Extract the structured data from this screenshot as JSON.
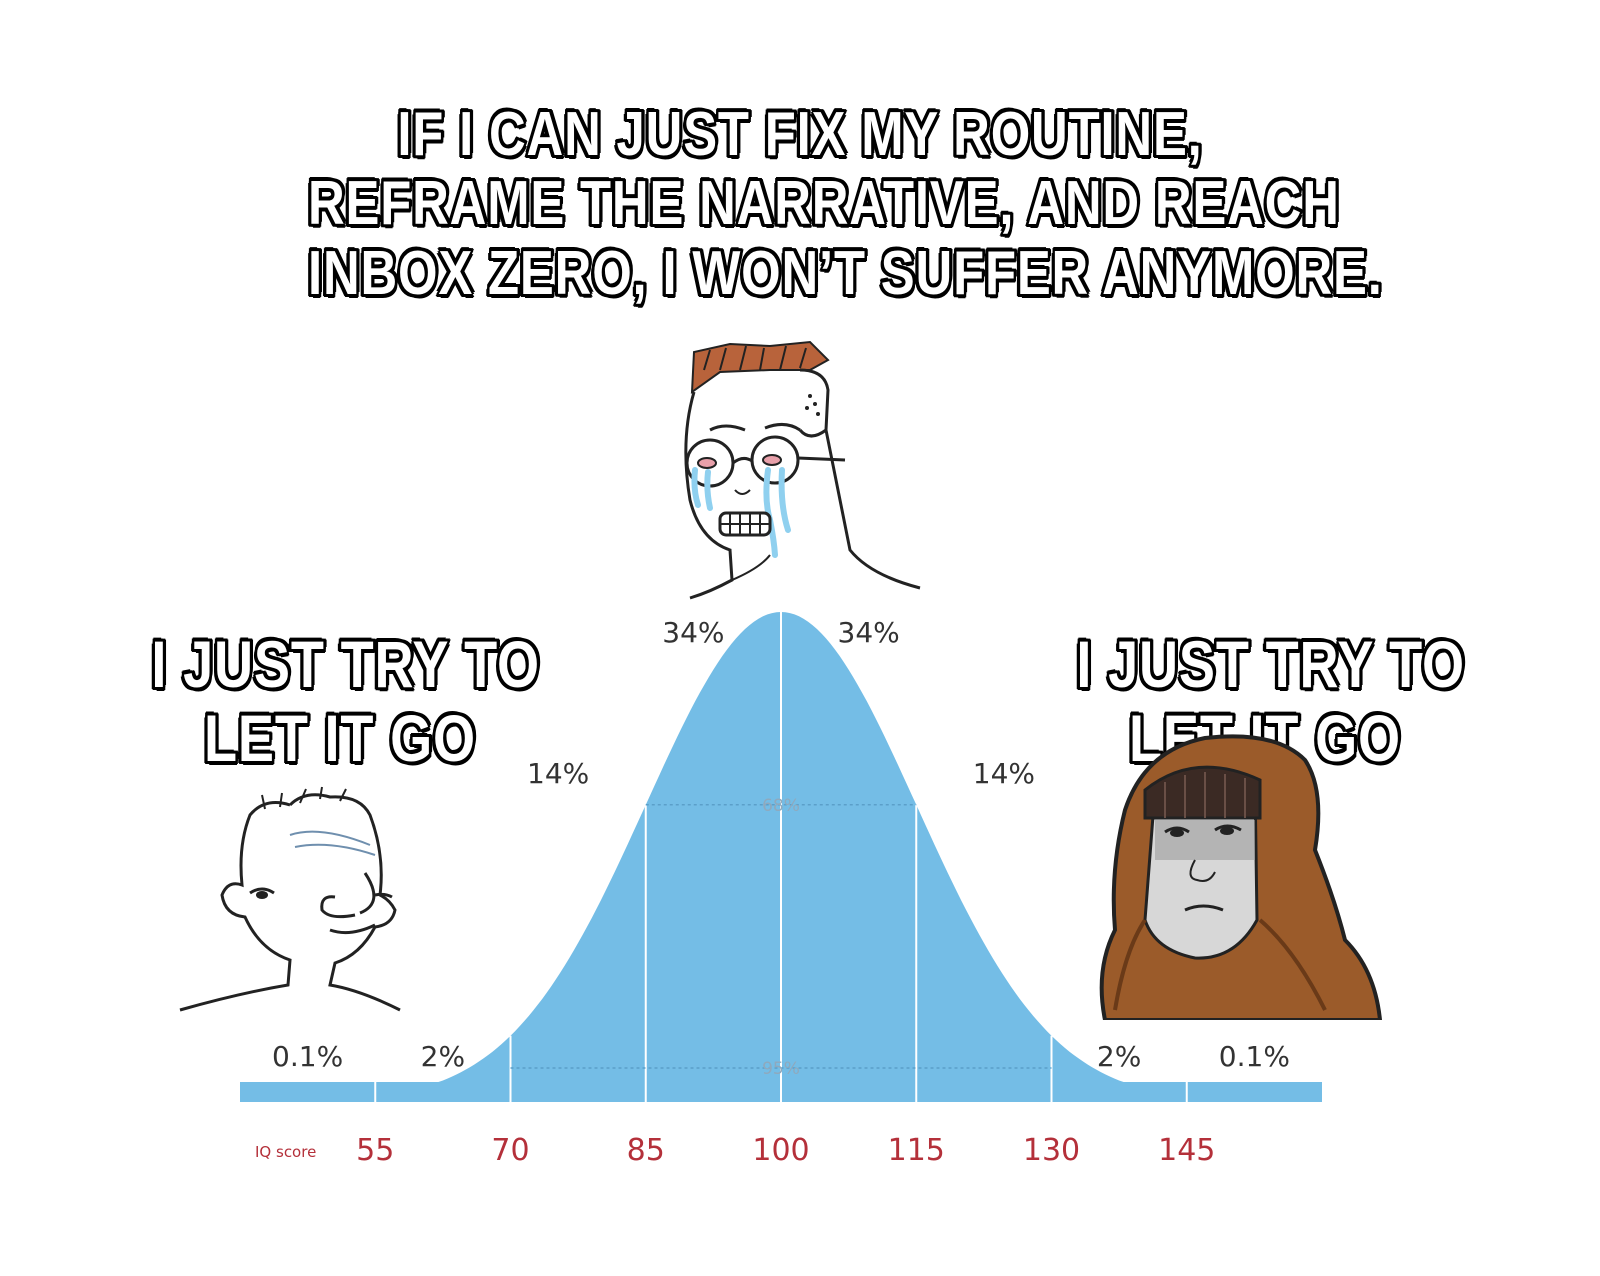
{
  "captions": {
    "top": [
      "IF I CAN JUST FIX MY ROUTINE,",
      "REFRAME THE NARRATIVE, AND REACH",
      "INBOX ZERO, I WON’T SUFFER ANYMORE."
    ],
    "left": [
      "I JUST TRY TO",
      "LET IT GO"
    ],
    "right": [
      "I JUST TRY TO",
      "LET IT GO"
    ]
  },
  "characters": {
    "left": "simple-wojak-icon",
    "middle": "crying-wojak-with-glasses-icon",
    "right": "hooded-wojak-icon"
  },
  "colors": {
    "curve_fill": "#74bde6",
    "tick_label": "#b4303a",
    "caption_fill": "#ffffff",
    "caption_stroke": "#000000"
  },
  "chart_data": {
    "type": "area",
    "xlabel": "IQ score",
    "x_ticks": [
      "55",
      "70",
      "85",
      "100",
      "115",
      "130",
      "145"
    ],
    "mean": 100,
    "sd": 15,
    "band_labels": [
      {
        "label": "0.1%",
        "from": 40,
        "to": 55
      },
      {
        "label": "2%",
        "from": 55,
        "to": 70
      },
      {
        "label": "14%",
        "from": 70,
        "to": 85
      },
      {
        "label": "34%",
        "from": 85,
        "to": 100
      },
      {
        "label": "34%",
        "from": 100,
        "to": 115
      },
      {
        "label": "14%",
        "from": 115,
        "to": 130
      },
      {
        "label": "2%",
        "from": 130,
        "to": 145
      },
      {
        "label": "0.1%",
        "from": 145,
        "to": 160
      }
    ],
    "interval_labels": [
      {
        "label": "68%",
        "from": 85,
        "to": 115
      },
      {
        "label": "95%",
        "from": 70,
        "to": 130
      }
    ],
    "xlim": [
      40,
      160
    ]
  }
}
